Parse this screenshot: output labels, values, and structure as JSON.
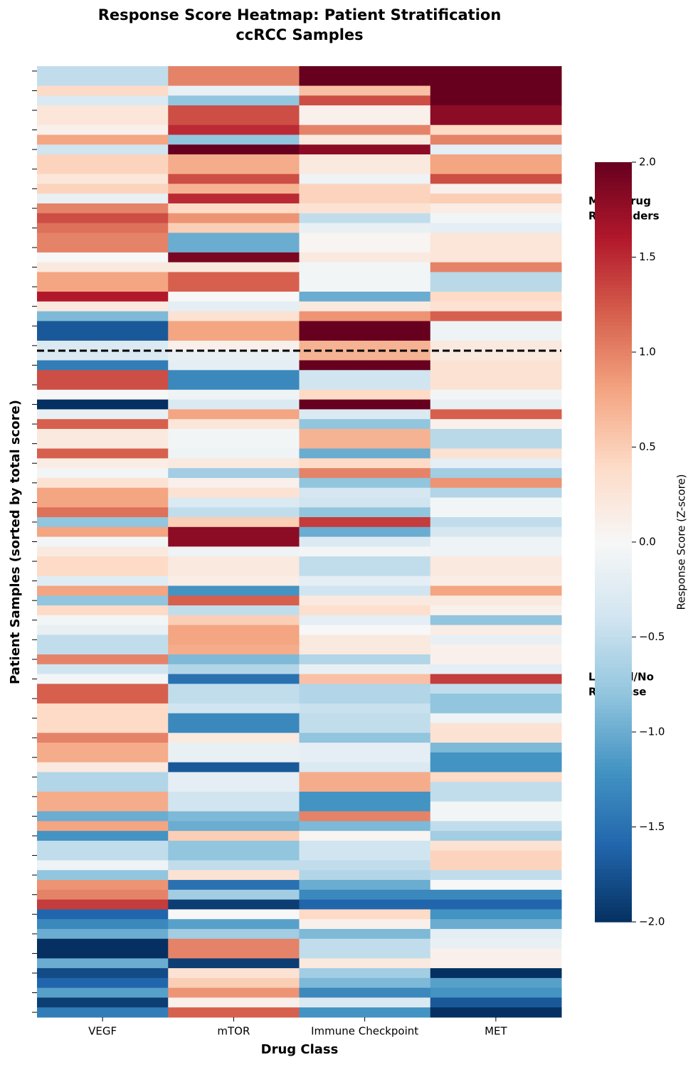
{
  "chart_data": {
    "type": "heatmap",
    "title": "Response Score Heatmap: Patient Stratification",
    "subtitle": "ccRCC Samples",
    "x_label": "Drug Class",
    "y_label": "Patient Samples (sorted by total score)",
    "categories": [
      "VEGF",
      "mTOR",
      "Immune Checkpoint",
      "MET"
    ],
    "values": [
      [
        -0.5,
        1.0,
        2.0,
        2.0
      ],
      [
        -0.5,
        1.0,
        2.0,
        2.0
      ],
      [
        0.4,
        -0.15,
        0.6,
        2.0
      ],
      [
        -0.3,
        -0.8,
        1.3,
        2.0
      ],
      [
        0.25,
        1.3,
        0.1,
        1.8
      ],
      [
        0.25,
        1.3,
        0.1,
        1.8
      ],
      [
        0.1,
        1.5,
        1.0,
        0.4
      ],
      [
        0.8,
        -0.8,
        0.2,
        1.0
      ],
      [
        -0.4,
        2.0,
        1.8,
        -0.2
      ],
      [
        0.45,
        0.75,
        0.2,
        0.8
      ],
      [
        0.45,
        0.75,
        0.2,
        0.8
      ],
      [
        0.25,
        1.3,
        -0.1,
        1.3
      ],
      [
        0.45,
        0.7,
        0.45,
        0.1
      ],
      [
        -0.15,
        1.5,
        0.45,
        0.5
      ],
      [
        1.0,
        0.4,
        0.3,
        0.15
      ],
      [
        1.3,
        0.9,
        -0.5,
        -0.05
      ],
      [
        1.1,
        0.5,
        -0.15,
        -0.2
      ],
      [
        1.0,
        -1.0,
        0.05,
        0.25
      ],
      [
        1.0,
        -1.0,
        0.05,
        0.25
      ],
      [
        0.0,
        1.9,
        0.2,
        0.25
      ],
      [
        0.2,
        0.2,
        -0.05,
        1.0
      ],
      [
        0.8,
        1.2,
        -0.05,
        -0.55
      ],
      [
        0.8,
        1.2,
        -0.05,
        -0.55
      ],
      [
        1.6,
        0.0,
        -1.0,
        0.4
      ],
      [
        0.2,
        -0.2,
        0.2,
        0.3
      ],
      [
        -0.9,
        0.3,
        0.9,
        1.2
      ],
      [
        -1.7,
        0.8,
        2.0,
        -0.1
      ],
      [
        -1.7,
        0.8,
        2.0,
        -0.1
      ],
      [
        -0.3,
        0.1,
        0.7,
        0.2
      ],
      [
        -0.3,
        -0.15,
        0.7,
        0.2
      ],
      [
        -1.4,
        -0.2,
        2.0,
        0.3
      ],
      [
        1.3,
        -1.3,
        -0.4,
        0.3
      ],
      [
        1.3,
        -1.3,
        -0.4,
        0.3
      ],
      [
        0.0,
        -0.1,
        0.4,
        -0.05
      ],
      [
        -2.0,
        -0.3,
        2.0,
        -0.15
      ],
      [
        -0.15,
        0.8,
        -0.3,
        1.2
      ],
      [
        1.2,
        0.25,
        -0.8,
        0.1
      ],
      [
        0.2,
        -0.05,
        0.7,
        -0.55
      ],
      [
        0.2,
        -0.05,
        0.7,
        -0.55
      ],
      [
        1.2,
        -0.1,
        -1.0,
        0.3
      ],
      [
        0.15,
        0.2,
        0.4,
        -0.2
      ],
      [
        -0.05,
        -0.7,
        1.0,
        -0.7
      ],
      [
        0.3,
        0.1,
        -0.8,
        0.9
      ],
      [
        0.8,
        0.3,
        -0.35,
        -0.6
      ],
      [
        0.8,
        -0.3,
        -0.4,
        -0.05
      ],
      [
        1.1,
        -0.5,
        -0.8,
        -0.05
      ],
      [
        -0.8,
        0.5,
        1.4,
        -0.5
      ],
      [
        0.8,
        1.8,
        -1.0,
        -0.35
      ],
      [
        -0.05,
        1.8,
        -0.3,
        -0.1
      ],
      [
        0.2,
        -0.1,
        -0.05,
        -0.1
      ],
      [
        0.4,
        0.2,
        -0.5,
        0.2
      ],
      [
        0.4,
        0.2,
        -0.5,
        0.2
      ],
      [
        -0.25,
        0.15,
        -0.2,
        0.15
      ],
      [
        0.8,
        -1.2,
        -0.4,
        0.8
      ],
      [
        -0.8,
        1.2,
        0.2,
        0.2
      ],
      [
        0.4,
        -0.5,
        0.35,
        0.1
      ],
      [
        -0.05,
        0.5,
        -0.2,
        -0.8
      ],
      [
        -0.15,
        0.8,
        0.0,
        0.15
      ],
      [
        -0.5,
        0.8,
        0.2,
        -0.15
      ],
      [
        -0.5,
        0.75,
        0.2,
        0.1
      ],
      [
        1.0,
        -0.9,
        -0.6,
        0.1
      ],
      [
        -0.4,
        -0.6,
        -0.15,
        -0.2
      ],
      [
        -0.05,
        -1.5,
        0.6,
        1.4
      ],
      [
        1.2,
        -0.5,
        -0.6,
        -0.5
      ],
      [
        1.2,
        -0.5,
        -0.6,
        -0.8
      ],
      [
        0.4,
        -0.4,
        -0.45,
        -0.8
      ],
      [
        0.4,
        -1.3,
        -0.5,
        -0.1
      ],
      [
        0.4,
        -1.3,
        -0.5,
        0.3
      ],
      [
        1.0,
        0.2,
        -0.8,
        0.3
      ],
      [
        0.75,
        -0.15,
        -0.2,
        -0.9
      ],
      [
        0.75,
        -0.15,
        -0.2,
        -1.2
      ],
      [
        0.2,
        -1.7,
        -0.3,
        -1.2
      ],
      [
        -0.6,
        -0.2,
        0.75,
        0.4
      ],
      [
        -0.6,
        -0.2,
        0.75,
        -0.5
      ],
      [
        0.75,
        -0.4,
        -1.2,
        -0.5
      ],
      [
        0.75,
        -0.4,
        -1.2,
        -0.05
      ],
      [
        -1.0,
        -0.9,
        1.0,
        -0.05
      ],
      [
        0.8,
        -1.0,
        -0.9,
        -0.5
      ],
      [
        -1.2,
        0.5,
        0.05,
        -0.7
      ],
      [
        -0.5,
        -0.8,
        -0.4,
        0.3
      ],
      [
        -0.5,
        -0.8,
        -0.4,
        0.45
      ],
      [
        -0.1,
        -0.5,
        -0.5,
        0.45
      ],
      [
        -0.8,
        0.3,
        -0.6,
        -0.5
      ],
      [
        0.9,
        -1.5,
        -1.0,
        0.0
      ],
      [
        1.0,
        -0.7,
        -1.3,
        -1.3
      ],
      [
        1.4,
        -1.9,
        -1.6,
        -1.6
      ],
      [
        -1.6,
        0.0,
        0.4,
        -1.2
      ],
      [
        -1.3,
        -1.1,
        0.1,
        -1.0
      ],
      [
        -1.0,
        -0.7,
        -0.9,
        -0.2
      ],
      [
        -2.0,
        1.0,
        -0.5,
        -0.15
      ],
      [
        -2.0,
        1.0,
        -0.5,
        0.1
      ],
      [
        -1.0,
        -1.9,
        0.2,
        0.1
      ],
      [
        -1.8,
        0.3,
        -0.7,
        -2.0
      ],
      [
        -1.6,
        0.5,
        -0.9,
        -1.1
      ],
      [
        -1.1,
        0.9,
        -1.3,
        -1.2
      ],
      [
        -1.9,
        0.1,
        -0.3,
        -1.7
      ],
      [
        -1.4,
        1.2,
        -1.2,
        -2.0
      ]
    ],
    "colormap": [
      "#053061",
      "#2166ac",
      "#4393c3",
      "#92c5de",
      "#d1e5f0",
      "#f7f7f7",
      "#fddbc7",
      "#f4a582",
      "#d6604d",
      "#b2182b",
      "#67001f"
    ],
    "zlim": [
      -2,
      2
    ],
    "zticks": [
      {
        "value": -2,
        "label": "−2.0"
      },
      {
        "value": -1.5,
        "label": "−1.5"
      },
      {
        "value": -1,
        "label": "−1.0"
      },
      {
        "value": -0.5,
        "label": "−0.5"
      },
      {
        "value": 0,
        "label": "0.0"
      },
      {
        "value": 0.5,
        "label": "0.5"
      },
      {
        "value": 1,
        "label": "1.0"
      },
      {
        "value": 1.5,
        "label": "1.5"
      },
      {
        "value": 2,
        "label": "2.0"
      }
    ],
    "colorbar_label": "Response Score (Z-score)",
    "annotations": [
      [
        "Most Drug",
        "Responders"
      ],
      [
        "Limited/No",
        "Response"
      ]
    ]
  }
}
